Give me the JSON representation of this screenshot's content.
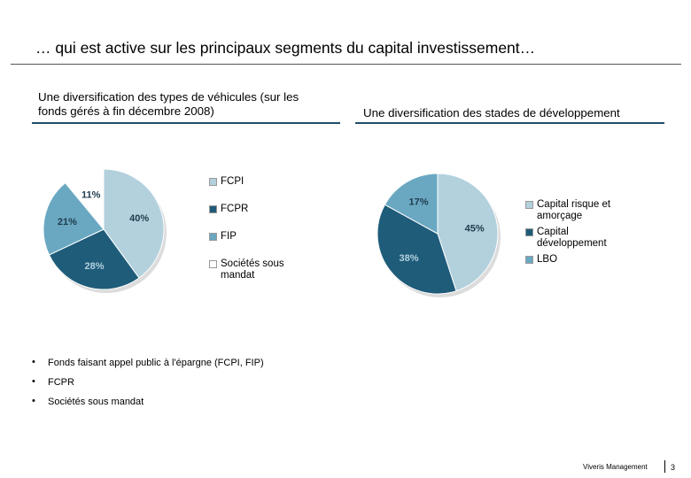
{
  "page": {
    "title": "… qui est active sur les principaux segments du capital investissement…",
    "footer": "Viveris Management",
    "page_number": "3"
  },
  "colors": {
    "dark": "#1f5c7a",
    "mid": "#6aa8c2",
    "light": "#b3d0dd",
    "white": "#ffffff"
  },
  "left": {
    "heading_line1": "Une diversification des types de véhicules (sur les",
    "heading_line2": "fonds gérés à fin décembre 2008)"
  },
  "right": {
    "heading": "Une diversification des stades de développement"
  },
  "chart_data": [
    {
      "type": "pie",
      "title": "Une diversification des types de véhicules (sur les fonds gérés à fin décembre 2008)",
      "categories": [
        "FCPI",
        "FCPR",
        "FIP",
        "Sociétés sous mandat"
      ],
      "legend_labels": [
        [
          "FCPI"
        ],
        [
          "FCPR"
        ],
        [
          "FIP"
        ],
        [
          "Sociétés sous",
          "mandat"
        ]
      ],
      "values": [
        40,
        28,
        21,
        11
      ],
      "labels": [
        "40%",
        "28%",
        "21%",
        "11%"
      ],
      "colors": [
        "#b3d0dd",
        "#1f5c7a",
        "#6aa8c2",
        "#ffffff"
      ],
      "legend_position": "right"
    },
    {
      "type": "pie",
      "title": "Une diversification des stades de développement",
      "categories": [
        "Capital risque et amorçage",
        "Capital développement",
        "LBO"
      ],
      "legend_labels": [
        [
          "Capital risque et",
          "amorçage"
        ],
        [
          "Capital",
          "développement"
        ],
        [
          "LBO"
        ]
      ],
      "values": [
        45,
        38,
        17
      ],
      "labels": [
        "45%",
        "38%",
        "17%"
      ],
      "colors": [
        "#b3d0dd",
        "#1f5c7a",
        "#6aa8c2"
      ],
      "legend_position": "right"
    }
  ],
  "bullets": {
    "marker": "•",
    "items": [
      "Fonds faisant appel public à l'épargne  (FCPI, FIP)",
      "FCPR",
      "Sociétés sous mandat"
    ]
  }
}
